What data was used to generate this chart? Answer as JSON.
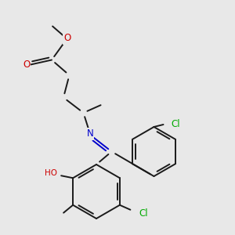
{
  "bg_color": "#e8e8e8",
  "bond_color": "#1a1a1a",
  "lw": 1.4,
  "atom_colors": {
    "O": "#cc0000",
    "N": "#0000cc",
    "Cl": "#00aa00"
  },
  "fs": 8.5,
  "fs_small": 7.5
}
